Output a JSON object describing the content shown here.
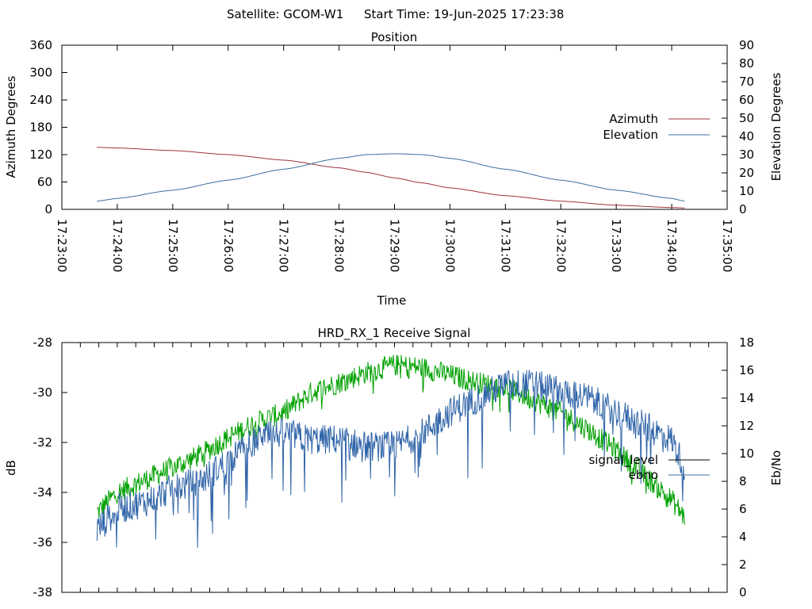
{
  "header": {
    "satellite": "Satellite: GCOM-W1",
    "start_time": "Start Time: 19-Jun-2025 17:23:38"
  },
  "colors": {
    "azimuth": "#a0323c",
    "elevation": "#3c6ea0",
    "signal_level": "#000000",
    "ebno_trace": "#2f64a8",
    "ebno_legend": "#3c6ea0",
    "signal_trace": "#00a000"
  },
  "chart_data": [
    {
      "type": "line",
      "title": "Position",
      "xlabel": "Time",
      "ylabel": "Azimuth Degrees",
      "y2label": "Elevation Degrees",
      "xlim": [
        "17:23:00",
        "17:35:00"
      ],
      "x_ticks": [
        "17:23:00",
        "17:24:00",
        "17:25:00",
        "17:26:00",
        "17:27:00",
        "17:28:00",
        "17:29:00",
        "17:30:00",
        "17:31:00",
        "17:32:00",
        "17:33:00",
        "17:34:00",
        "17:35:00"
      ],
      "ylim": [
        0,
        360
      ],
      "y_ticks": [
        0,
        60,
        120,
        180,
        240,
        300,
        360
      ],
      "y2lim": [
        0,
        90
      ],
      "y2_ticks": [
        0,
        10,
        20,
        30,
        40,
        50,
        60,
        70,
        80,
        90
      ],
      "legend_position": "right",
      "x": [
        "17:23:38",
        "17:24:00",
        "17:25:00",
        "17:26:00",
        "17:27:00",
        "17:28:00",
        "17:28:30",
        "17:29:00",
        "17:29:30",
        "17:30:00",
        "17:31:00",
        "17:32:00",
        "17:33:00",
        "17:34:00",
        "17:34:14"
      ],
      "series": [
        {
          "name": "Azimuth",
          "axis": "left",
          "values": [
            136,
            134.5,
            129,
            120,
            108,
            91,
            81,
            69,
            58,
            47,
            30,
            18,
            9,
            4,
            3
          ]
        },
        {
          "name": "Elevation",
          "axis": "right",
          "values": [
            4.5,
            6,
            10.5,
            16,
            22,
            28,
            30,
            30.5,
            30,
            28,
            22,
            16,
            10.5,
            6,
            4.5
          ]
        }
      ]
    },
    {
      "type": "line",
      "title": "HRD_RX_1 Receive Signal",
      "ylabel": "dB",
      "y2label": "Eb/No",
      "ylim": [
        -38,
        -28
      ],
      "y_ticks": [
        -38,
        -36,
        -34,
        -32,
        -30,
        -28
      ],
      "y2lim": [
        0,
        18
      ],
      "y2_ticks": [
        0,
        2,
        4,
        6,
        8,
        10,
        12,
        14,
        16,
        18
      ],
      "xlim": [
        "17:23:00",
        "17:35:00"
      ],
      "legend_position": "right",
      "legend": [
        {
          "name": "signal_level"
        },
        {
          "name": "ebno"
        }
      ],
      "x": [
        "17:23:38",
        "17:24:00",
        "17:24:30",
        "17:25:00",
        "17:25:30",
        "17:26:00",
        "17:26:30",
        "17:27:00",
        "17:27:30",
        "17:28:00",
        "17:28:30",
        "17:29:00",
        "17:29:30",
        "17:30:00",
        "17:30:30",
        "17:31:00",
        "17:31:30",
        "17:32:00",
        "17:32:30",
        "17:33:00",
        "17:33:30",
        "17:34:00",
        "17:34:14"
      ],
      "series": [
        {
          "name": "signal_level",
          "axis": "left",
          "values": [
            -34.8,
            -34,
            -33.5,
            -33,
            -32.5,
            -31.8,
            -31.2,
            -30.8,
            -30,
            -29.6,
            -29.2,
            -28.9,
            -29,
            -29.3,
            -29.6,
            -29.8,
            -30.3,
            -30.8,
            -31.5,
            -32.3,
            -33.3,
            -34.3,
            -35
          ]
        },
        {
          "name": "ebno",
          "axis": "right",
          "values": [
            4.5,
            6,
            6.5,
            7.5,
            8,
            9.5,
            11,
            11.5,
            11,
            11,
            10.5,
            10.5,
            11.5,
            13,
            14,
            15,
            15,
            14.5,
            14,
            13,
            12,
            11,
            9
          ]
        }
      ]
    }
  ]
}
